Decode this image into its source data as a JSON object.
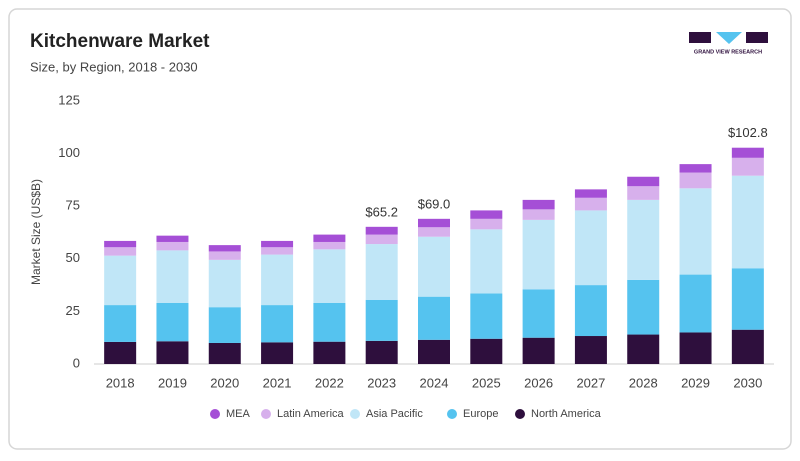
{
  "chart_data": {
    "type": "stacked_bar",
    "title": "Kitchenware Market",
    "subtitle": "Size, by Region, 2018 - 2030",
    "brand": "GRAND VIEW RESEARCH",
    "y_label": "Market Size (US$B)",
    "categories": [
      "2018",
      "2019",
      "2020",
      "2021",
      "2022",
      "2023",
      "2024",
      "2025",
      "2026",
      "2027",
      "2028",
      "2029",
      "2030"
    ],
    "series": [
      {
        "name": "North America",
        "color": "#2e0f3d",
        "values": [
          10.5,
          10.8,
          10,
          10.3,
          10.6,
          11,
          11.5,
          12,
          12.5,
          13.3,
          14,
          15,
          16.3
        ]
      },
      {
        "name": "Europe",
        "color": "#55c3ef",
        "values": [
          17.5,
          18.2,
          17,
          17.7,
          18.4,
          19.5,
          20.5,
          21.5,
          23,
          24.2,
          26,
          27.5,
          29.2
        ]
      },
      {
        "name": "Asia Pacific",
        "color": "#c0e6f7",
        "values": [
          23.5,
          25,
          22.5,
          24,
          25.5,
          26.5,
          28.5,
          30.5,
          33,
          35.5,
          38,
          41,
          44
        ]
      },
      {
        "name": "Latin America",
        "color": "#d7b0ec",
        "values": [
          4,
          4,
          4,
          3.5,
          3.5,
          4.5,
          4.5,
          5,
          5,
          6,
          6.5,
          7.5,
          8.5
        ]
      },
      {
        "name": "MEA",
        "color": "#a54fd6",
        "values": [
          3,
          3,
          3,
          3,
          3.5,
          3.7,
          4,
          4,
          4.5,
          4,
          4.5,
          4,
          4.8
        ]
      }
    ],
    "total_labels": [
      {
        "category": "2023",
        "value": 65.2,
        "label": "$65.2"
      },
      {
        "category": "2024",
        "value": 69.0,
        "label": "$69.0"
      },
      {
        "category": "2030",
        "value": 102.8,
        "label": "$102.8"
      }
    ],
    "legend_order": [
      4,
      3,
      2,
      1,
      0
    ],
    "ylim": [
      0,
      125
    ],
    "yticks": [
      0,
      25,
      50,
      75,
      100,
      125
    ],
    "grid": false
  }
}
